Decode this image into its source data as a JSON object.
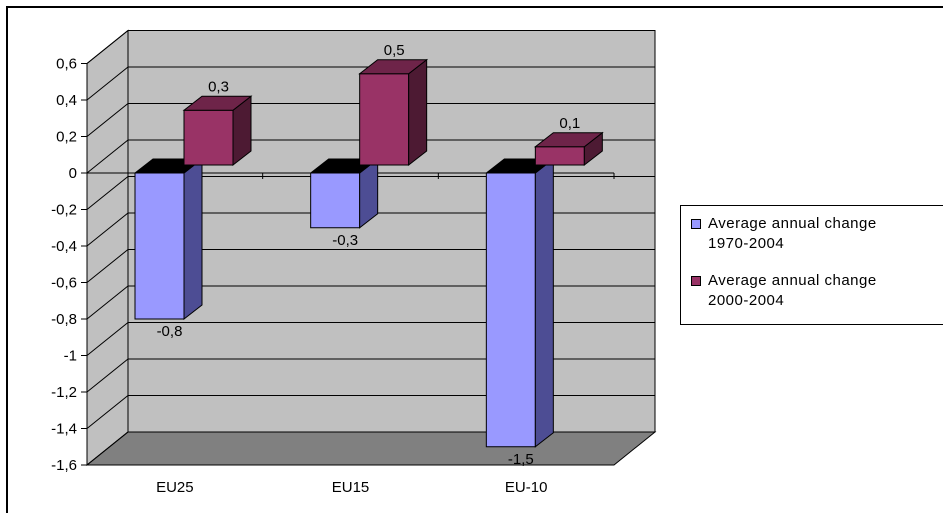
{
  "chart_data": {
    "type": "bar",
    "style": "3d-clustered-column",
    "categories": [
      "EU25",
      "EU15",
      "EU-10"
    ],
    "series": [
      {
        "name": "Average annual change 1970-2004",
        "values": [
          -0.8,
          -0.3,
          -1.5
        ],
        "labels": [
          "-0,8",
          "-0,3",
          "-1,5"
        ]
      },
      {
        "name": "Average annual change 2000-2004",
        "values": [
          0.3,
          0.5,
          0.1
        ],
        "labels": [
          "0,3",
          "0,5",
          "0,1"
        ]
      }
    ],
    "ylim": [
      -1.6,
      0.6
    ],
    "yticks": [
      0.6,
      0.4,
      0.2,
      0,
      -0.2,
      -0.4,
      -0.6,
      -0.8,
      -1,
      -1.2,
      -1.4,
      -1.6
    ],
    "ytick_labels": [
      "0,6",
      "0,4",
      "0,2",
      "0",
      "-0,2",
      "-0,4",
      "-0,6",
      "-0,8",
      "-1",
      "-1,2",
      "-1,4",
      "-1,6"
    ],
    "grid": true,
    "legend_position": "right",
    "legend": [
      {
        "line1": "Average annual change",
        "line2": "1970-2004",
        "color": "#9999ff"
      },
      {
        "line1": "Average annual change",
        "line2": "2000-2004",
        "color": "#993366"
      }
    ],
    "colors": {
      "series1": "#9999ff",
      "series1_side": "#4d4d94",
      "series1_top": "#000000",
      "series2": "#993366",
      "series2_side": "#4d1a33",
      "series2_top": "#6e2449",
      "wall": "#c0c0c0",
      "floor": "#808080"
    }
  }
}
